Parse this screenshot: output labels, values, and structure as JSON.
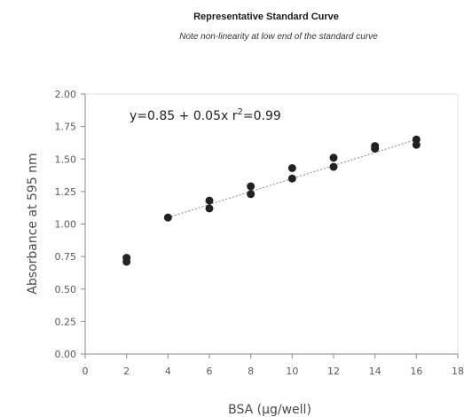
{
  "chart_data": {
    "type": "scatter",
    "title": "Representative Standard Curve",
    "subtitle": "Note non-linearity at low end of the standard curve",
    "xlabel": "BSA (µg/well)",
    "ylabel": "Absorbance at 595 nm",
    "xlim": [
      0,
      18
    ],
    "ylim": [
      0,
      2
    ],
    "x_ticks": [
      0,
      2,
      4,
      6,
      8,
      10,
      12,
      14,
      16,
      18
    ],
    "y_ticks": [
      "0.00",
      "0.25",
      "0.50",
      "0.75",
      "1.00",
      "1.25",
      "1.50",
      "1.75",
      "2.00"
    ],
    "grid": false,
    "points": [
      {
        "x": 2,
        "y": 0.71
      },
      {
        "x": 2,
        "y": 0.74
      },
      {
        "x": 4,
        "y": 1.05
      },
      {
        "x": 6,
        "y": 1.12
      },
      {
        "x": 6,
        "y": 1.18
      },
      {
        "x": 8,
        "y": 1.23
      },
      {
        "x": 8,
        "y": 1.29
      },
      {
        "x": 10,
        "y": 1.35
      },
      {
        "x": 10,
        "y": 1.43
      },
      {
        "x": 12,
        "y": 1.44
      },
      {
        "x": 12,
        "y": 1.51
      },
      {
        "x": 14,
        "y": 1.58
      },
      {
        "x": 14,
        "y": 1.6
      },
      {
        "x": 16,
        "y": 1.61
      },
      {
        "x": 16,
        "y": 1.65
      }
    ],
    "fit_line": {
      "intercept": 0.85,
      "slope": 0.05,
      "x_range": [
        4,
        16
      ]
    },
    "equation_text": "y=0.85 + 0.05x r",
    "equation_exponent": "2",
    "equation_tail": "=0.99",
    "colors": {
      "points": "#222222",
      "fit_line": "#999999",
      "axes": "#8a8a8a"
    }
  }
}
